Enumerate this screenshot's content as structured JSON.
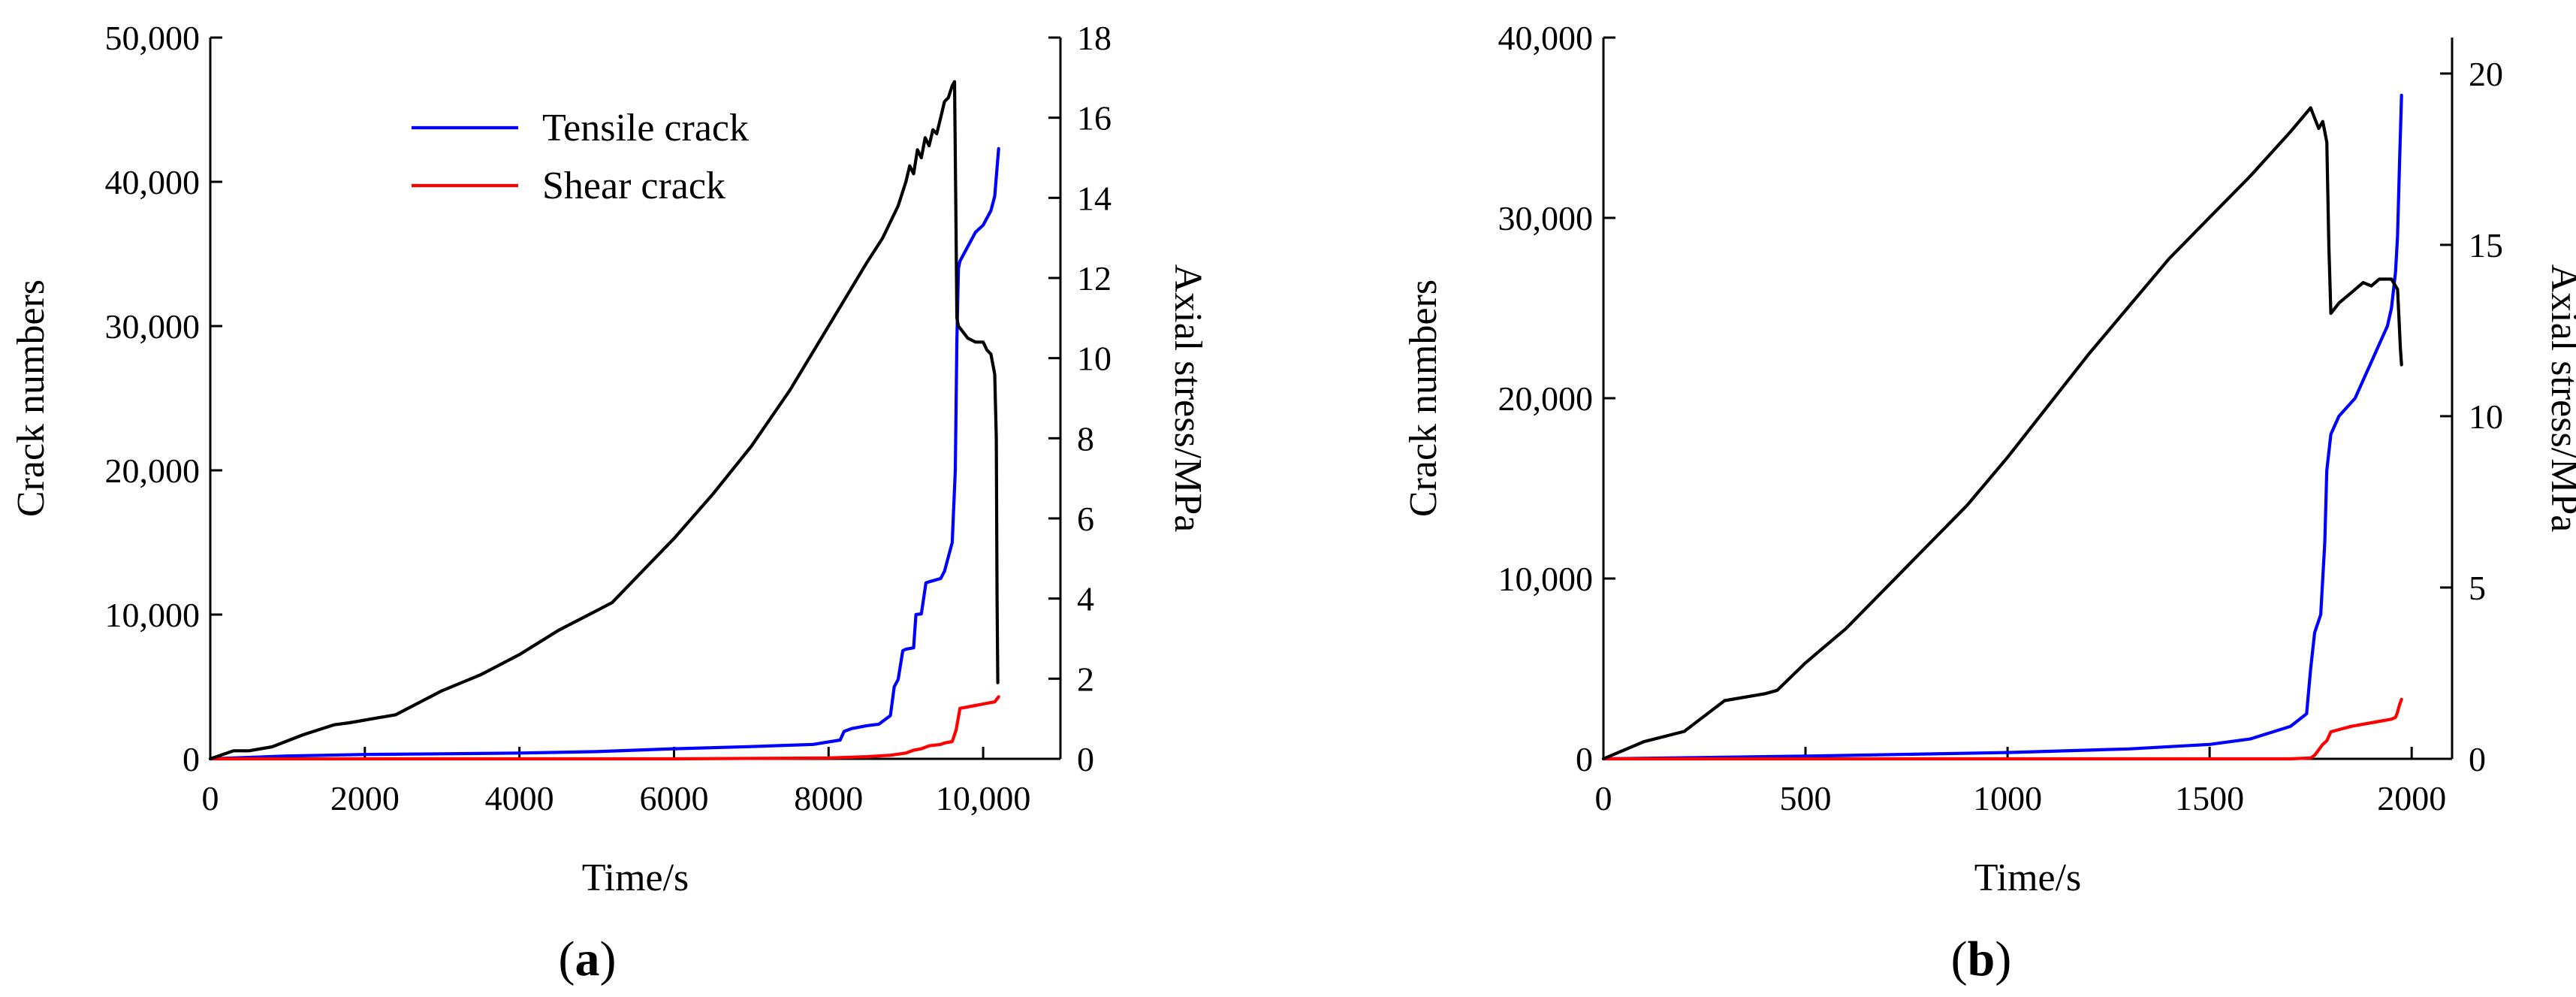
{
  "chart_data": [
    {
      "type": "line",
      "panel_label": "a",
      "xlabel": "Time/s",
      "ylabel": "Crack numbers",
      "y2label": "Axial stress/MPa",
      "xlim": [
        0,
        11000
      ],
      "ylim": [
        0,
        50000
      ],
      "y2lim": [
        0,
        18
      ],
      "xticks": [
        0,
        2000,
        4000,
        6000,
        8000,
        10000
      ],
      "xtick_labels": [
        "0",
        "2000",
        "4000",
        "6000",
        "8000",
        "10,000"
      ],
      "yticks": [
        0,
        10000,
        20000,
        30000,
        40000,
        50000
      ],
      "ytick_labels": [
        "0",
        "10,000",
        "20,000",
        "30,000",
        "40,000",
        "50,000"
      ],
      "y2ticks": [
        0,
        2,
        4,
        6,
        8,
        10,
        12,
        14,
        16,
        18
      ],
      "y2tick_labels": [
        "0",
        "2",
        "4",
        "6",
        "8",
        "10",
        "12",
        "14",
        "16",
        "18"
      ],
      "legend_position": "top-center",
      "legend_entries": [
        "Tensile crack",
        "Shear crack"
      ],
      "series": [
        {
          "name": "Tensile crack",
          "axis": "left",
          "color": "#0000ff",
          "x": [
            0,
            1000,
            2000,
            3000,
            4000,
            5000,
            6000,
            7000,
            7800,
            8150,
            8200,
            8300,
            8500,
            8650,
            8800,
            8850,
            8900,
            8960,
            9000,
            9100,
            9130,
            9200,
            9260,
            9320,
            9450,
            9500,
            9600,
            9640,
            9660,
            9680,
            9700,
            9800,
            9900,
            10000,
            10100,
            10150,
            10200
          ],
          "y": [
            0,
            200,
            300,
            350,
            400,
            500,
            700,
            850,
            1000,
            1300,
            1900,
            2100,
            2300,
            2400,
            3000,
            5000,
            5500,
            7500,
            7600,
            7700,
            10000,
            10050,
            12200,
            12300,
            12500,
            13000,
            15000,
            20000,
            29000,
            34000,
            34500,
            35500,
            36500,
            37000,
            38000,
            39000,
            42300
          ]
        },
        {
          "name": "Shear crack",
          "axis": "left",
          "color": "#ff0000",
          "x": [
            0,
            6000,
            8000,
            8500,
            8800,
            9000,
            9100,
            9200,
            9300,
            9450,
            9500,
            9600,
            9650,
            9700,
            9900,
            10000,
            10100,
            10150,
            10200
          ],
          "y": [
            0,
            0,
            60,
            150,
            250,
            400,
            600,
            700,
            900,
            1000,
            1100,
            1200,
            2000,
            3500,
            3700,
            3800,
            3900,
            3950,
            4300
          ]
        },
        {
          "axis": "right",
          "color": "#000000",
          "x": [
            0,
            300,
            500,
            800,
            1200,
            1600,
            1800,
            2400,
            3000,
            3500,
            4000,
            4500,
            5000,
            5200,
            5600,
            6000,
            6500,
            7000,
            7500,
            8000,
            8500,
            8700,
            8900,
            9000,
            9050,
            9100,
            9150,
            9200,
            9250,
            9300,
            9350,
            9400,
            9450,
            9500,
            9550,
            9600,
            9630,
            9650,
            9660,
            9680,
            9720,
            9800,
            9900,
            10000,
            10050,
            10100,
            10150,
            10170,
            10180,
            10190
          ],
          "y": [
            0,
            0.2,
            0.2,
            0.3,
            0.6,
            0.85,
            0.9,
            1.1,
            1.7,
            2.1,
            2.6,
            3.2,
            3.7,
            3.9,
            4.7,
            5.5,
            6.6,
            7.8,
            9.2,
            10.8,
            12.4,
            13.0,
            13.8,
            14.4,
            14.8,
            14.6,
            15.2,
            15.0,
            15.5,
            15.3,
            15.7,
            15.6,
            16.0,
            16.4,
            16.5,
            16.8,
            16.9,
            13.0,
            11.0,
            10.8,
            10.7,
            10.5,
            10.4,
            10.4,
            10.2,
            10.1,
            9.6,
            8.0,
            4.0,
            1.9
          ]
        }
      ]
    },
    {
      "type": "line",
      "panel_label": "b",
      "xlabel": "Time/s",
      "ylabel": "Crack numbers",
      "y2label": "Axial stress/MPa",
      "xlim": [
        0,
        2100
      ],
      "ylim": [
        0,
        40000
      ],
      "y2lim": [
        0,
        21.05
      ],
      "xticks": [
        0,
        500,
        1000,
        1500,
        2000
      ],
      "xtick_labels": [
        "0",
        "500",
        "1000",
        "1500",
        "2000"
      ],
      "yticks": [
        0,
        10000,
        20000,
        30000,
        40000
      ],
      "ytick_labels": [
        "0",
        "10,000",
        "20,000",
        "30,000",
        "40,000"
      ],
      "y2ticks": [
        0,
        5,
        10,
        15,
        20
      ],
      "y2tick_labels": [
        "0",
        "5",
        "10",
        "15",
        "20"
      ],
      "series": [
        {
          "name": "Tensile crack",
          "axis": "left",
          "color": "#0000ff",
          "x": [
            0,
            500,
            1000,
            1300,
            1500,
            1600,
            1700,
            1740,
            1750,
            1760,
            1775,
            1785,
            1790,
            1800,
            1820,
            1840,
            1860,
            1880,
            1900,
            1920,
            1940,
            1950,
            1960,
            1965,
            1970,
            1975
          ],
          "y": [
            0,
            150,
            350,
            550,
            800,
            1100,
            1800,
            2500,
            5000,
            7000,
            8000,
            12000,
            16000,
            18000,
            19000,
            19500,
            20000,
            21000,
            22000,
            23000,
            24000,
            25000,
            27000,
            29000,
            33000,
            36800
          ]
        },
        {
          "name": "Shear crack",
          "axis": "left",
          "color": "#ff0000",
          "x": [
            0,
            1700,
            1750,
            1760,
            1770,
            1780,
            1790,
            1800,
            1850,
            1900,
            1950,
            1960,
            1965,
            1970,
            1975
          ],
          "y": [
            0,
            0,
            50,
            200,
            500,
            800,
            1000,
            1500,
            1800,
            2000,
            2200,
            2300,
            2600,
            3000,
            3300
          ]
        },
        {
          "axis": "right",
          "color": "#000000",
          "x": [
            0,
            100,
            200,
            300,
            400,
            430,
            500,
            600,
            700,
            800,
            900,
            1000,
            1100,
            1200,
            1300,
            1400,
            1500,
            1600,
            1700,
            1750,
            1760,
            1770,
            1780,
            1790,
            1795,
            1800,
            1820,
            1850,
            1880,
            1900,
            1920,
            1950,
            1960,
            1965,
            1968,
            1972,
            1975
          ],
          "y": [
            0,
            0.5,
            0.8,
            1.7,
            1.9,
            2.0,
            2.8,
            3.8,
            5.0,
            6.2,
            7.4,
            8.8,
            10.3,
            11.8,
            13.2,
            14.6,
            15.8,
            17.0,
            18.3,
            19.0,
            18.7,
            18.4,
            18.6,
            18.0,
            15.0,
            13.0,
            13.3,
            13.6,
            13.9,
            13.8,
            14.0,
            14.0,
            13.8,
            13.7,
            13.0,
            12.0,
            11.5
          ]
        }
      ]
    }
  ]
}
